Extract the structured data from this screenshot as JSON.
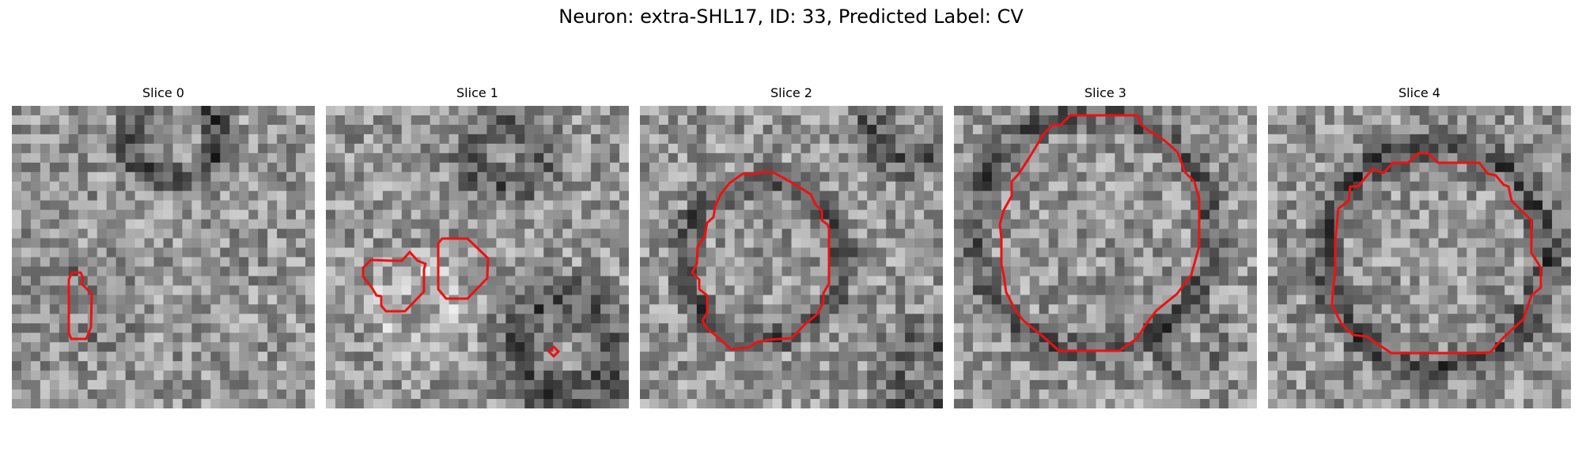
{
  "figure": {
    "title": "Neuron: extra-SHL17, ID: 33, Predicted Label: CV"
  },
  "colors": {
    "contour": "#ee1111",
    "background": "#ffffff"
  },
  "panels": [
    {
      "title": "Slice 0",
      "seed": 11,
      "content": "small ring top right, small contour left"
    },
    {
      "title": "Slice 1",
      "seed": 23,
      "content": "two small contours, tiny diamond"
    },
    {
      "title": "Slice 2",
      "seed": 37,
      "content": "large round contour"
    },
    {
      "title": "Slice 3",
      "seed": 41,
      "content": "large octagonal contour"
    },
    {
      "title": "Slice 4",
      "seed": 53,
      "content": "large octagonal contour"
    }
  ]
}
